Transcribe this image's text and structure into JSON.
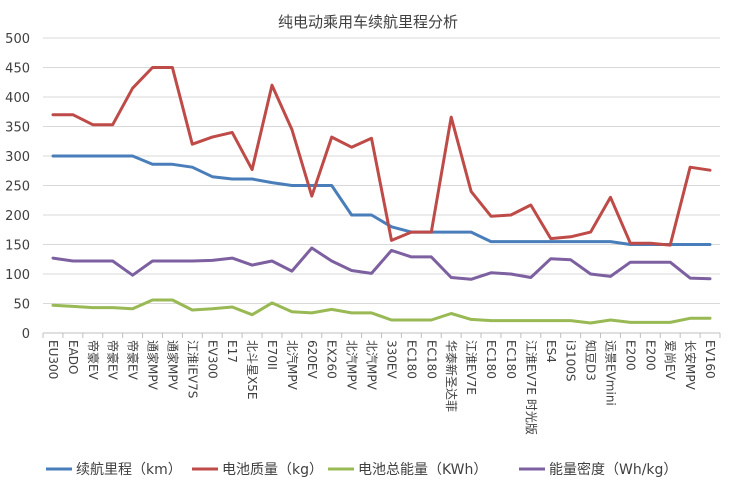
{
  "chart_data": {
    "type": "line",
    "title": "纯电动乘用车续航里程分析",
    "xlabel": "",
    "ylabel": "",
    "ylim": [
      0,
      500
    ],
    "yticks": [
      0,
      50,
      100,
      150,
      200,
      250,
      300,
      350,
      400,
      450,
      500
    ],
    "grid": true,
    "legend_position": "bottom",
    "categories": [
      "EU300",
      "EADO",
      "帝豪EV",
      "帝豪EV",
      "帝豪EV",
      "通家MPV",
      "通家MPV",
      "江淮iEV7S",
      "EV300",
      "E17",
      "北斗星X5E",
      "E70II",
      "北汽MPV",
      "620EV",
      "EX260",
      "北汽MPV",
      "北汽MPV",
      "330EV",
      "EC180",
      "EC180",
      "华泰新圣达菲",
      "江淮EV7E",
      "EC180",
      "EC180",
      "江淮EV7E 时光版",
      "ES4",
      "i3100S",
      "知豆D3",
      "远景EVmini",
      "E200",
      "E200",
      "爱尚EV",
      "长安MPV",
      "EV160"
    ],
    "series": [
      {
        "name": "续航里程（km）",
        "color": "#4a7ebb",
        "values": [
          300,
          300,
          300,
          300,
          300,
          286,
          286,
          281,
          265,
          261,
          261,
          255,
          250,
          250,
          250,
          200,
          200,
          180,
          171,
          171,
          171,
          171,
          155,
          155,
          155,
          155,
          155,
          155,
          155,
          150,
          150,
          150,
          150,
          150
        ]
      },
      {
        "name": "电池质量（kg）",
        "color": "#be4b48",
        "values": [
          370,
          370,
          353,
          353,
          415,
          450,
          450,
          320,
          332,
          340,
          277,
          420,
          345,
          232,
          332,
          315,
          330,
          157,
          171,
          171,
          366,
          240,
          198,
          200,
          217,
          160,
          163,
          171,
          230,
          152,
          152,
          149,
          281,
          276
        ]
      },
      {
        "name": "电池总能量（KWh）",
        "color": "#98b954",
        "values": [
          47,
          45,
          43,
          43,
          41,
          56,
          56,
          39,
          41,
          44,
          31,
          51,
          36,
          34,
          40,
          34,
          34,
          22,
          22,
          22,
          33,
          23,
          21,
          21,
          21,
          21,
          21,
          17,
          22,
          18,
          18,
          18,
          25,
          25
        ]
      },
      {
        "name": "能量密度（Wh/kg）",
        "color": "#7d60a0",
        "values": [
          127,
          122,
          122,
          122,
          98,
          122,
          122,
          122,
          123,
          127,
          115,
          122,
          105,
          144,
          122,
          106,
          101,
          140,
          129,
          129,
          94,
          91,
          102,
          100,
          94,
          126,
          124,
          100,
          96,
          120,
          120,
          120,
          93,
          92
        ]
      }
    ]
  }
}
